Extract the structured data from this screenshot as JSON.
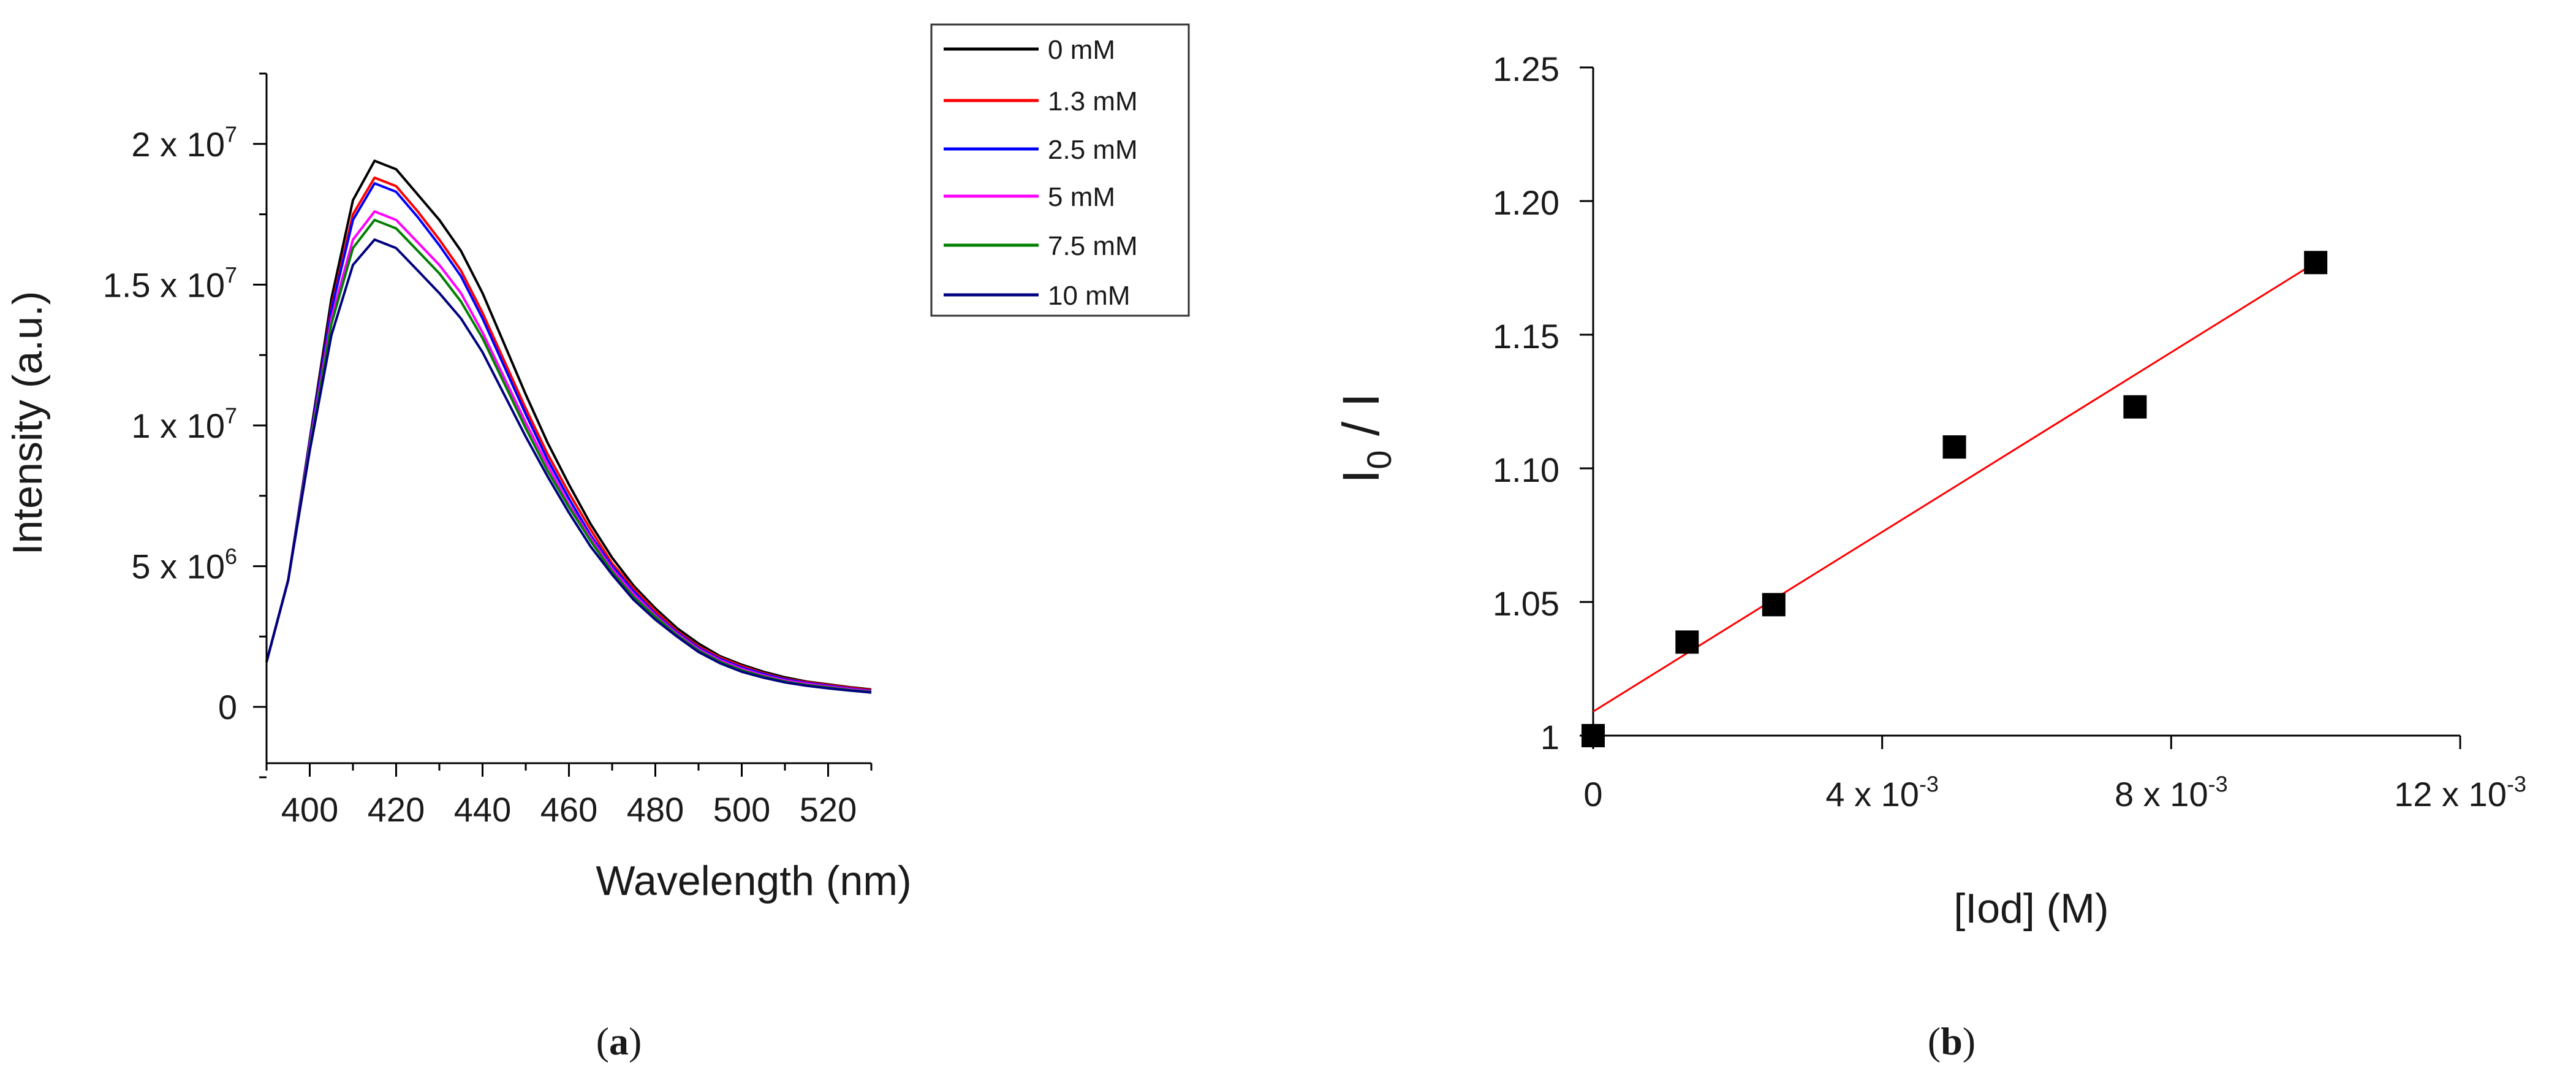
{
  "chart_data": [
    {
      "type": "line",
      "panel": "a",
      "xlabel": "Wavelength (nm)",
      "ylabel": "Intensity (a.u.)",
      "xlim": [
        390,
        530
      ],
      "ylim": [
        -2000000.0,
        22500000.0
      ],
      "xticks": [
        {
          "value": 400,
          "label": "400"
        },
        {
          "value": 420,
          "label": "420"
        },
        {
          "value": 440,
          "label": "440"
        },
        {
          "value": 460,
          "label": "460"
        },
        {
          "value": 480,
          "label": "480"
        },
        {
          "value": 500,
          "label": "500"
        },
        {
          "value": 520,
          "label": "520"
        }
      ],
      "yticks": [
        {
          "value": 0,
          "mantissa": "0",
          "exponent": ""
        },
        {
          "value": 5000000,
          "mantissa": "5 x 10",
          "exponent": "6"
        },
        {
          "value": 10000000,
          "mantissa": "1 x 10",
          "exponent": "7"
        },
        {
          "value": 15000000,
          "mantissa": "1.5 x 10",
          "exponent": "7"
        },
        {
          "value": 20000000,
          "mantissa": "2 x 10",
          "exponent": "7"
        }
      ],
      "x": [
        390,
        395,
        400,
        405,
        410,
        415,
        420,
        425,
        430,
        435,
        440,
        445,
        450,
        455,
        460,
        465,
        470,
        475,
        480,
        485,
        490,
        495,
        500,
        505,
        510,
        515,
        520,
        525,
        530
      ],
      "series": [
        {
          "name": "0 mM",
          "color": "#000000",
          "values": [
            0.16,
            0.45,
            0.95,
            1.45,
            1.8,
            1.94,
            1.91,
            1.82,
            1.73,
            1.62,
            1.47,
            1.29,
            1.11,
            0.94,
            0.79,
            0.65,
            0.53,
            0.43,
            0.35,
            0.28,
            0.225,
            0.18,
            0.15,
            0.125,
            0.105,
            0.09,
            0.08,
            0.07,
            0.062
          ]
        },
        {
          "name": "1.3 mM",
          "color": "#ff0000",
          "values": [
            0.16,
            0.45,
            0.94,
            1.42,
            1.75,
            1.88,
            1.85,
            1.76,
            1.66,
            1.55,
            1.4,
            1.23,
            1.06,
            0.9,
            0.76,
            0.63,
            0.51,
            0.42,
            0.34,
            0.27,
            0.215,
            0.175,
            0.145,
            0.12,
            0.1,
            0.088,
            0.078,
            0.068,
            0.06
          ]
        },
        {
          "name": "2.5 mM",
          "color": "#0000ff",
          "values": [
            0.16,
            0.45,
            0.94,
            1.41,
            1.73,
            1.86,
            1.83,
            1.74,
            1.64,
            1.53,
            1.38,
            1.21,
            1.04,
            0.88,
            0.74,
            0.61,
            0.5,
            0.41,
            0.33,
            0.265,
            0.21,
            0.17,
            0.14,
            0.117,
            0.098,
            0.085,
            0.075,
            0.065,
            0.057
          ]
        },
        {
          "name": "5 mM",
          "color": "#ff00ff",
          "values": [
            0.16,
            0.45,
            0.93,
            1.38,
            1.66,
            1.76,
            1.73,
            1.65,
            1.57,
            1.47,
            1.33,
            1.17,
            1.01,
            0.86,
            0.72,
            0.6,
            0.49,
            0.4,
            0.325,
            0.26,
            0.205,
            0.165,
            0.135,
            0.112,
            0.094,
            0.082,
            0.072,
            0.063,
            0.055
          ]
        },
        {
          "name": "7.5 mM",
          "color": "#008000",
          "values": [
            0.16,
            0.45,
            0.92,
            1.36,
            1.63,
            1.73,
            1.7,
            1.62,
            1.54,
            1.44,
            1.31,
            1.15,
            0.99,
            0.84,
            0.71,
            0.59,
            0.48,
            0.39,
            0.32,
            0.255,
            0.2,
            0.16,
            0.13,
            0.108,
            0.09,
            0.078,
            0.069,
            0.06,
            0.053
          ]
        },
        {
          "name": "10 mM",
          "color": "#000080",
          "values": [
            0.16,
            0.45,
            0.91,
            1.32,
            1.57,
            1.66,
            1.63,
            1.55,
            1.47,
            1.38,
            1.26,
            1.11,
            0.96,
            0.82,
            0.69,
            0.57,
            0.47,
            0.38,
            0.31,
            0.25,
            0.195,
            0.155,
            0.125,
            0.104,
            0.087,
            0.075,
            0.066,
            0.058,
            0.051
          ]
        }
      ],
      "series_unit_scale": 10000000,
      "legend_position": "top-right"
    },
    {
      "type": "scatter",
      "panel": "b",
      "xlabel": "[Iod] (M)",
      "ylabel_main": "I",
      "ylabel_sub": "0",
      "ylabel_tail": " / I",
      "xlim": [
        0,
        0.012
      ],
      "ylim": [
        1.0,
        1.25
      ],
      "xticks": [
        {
          "value": 0,
          "mantissa": "0",
          "exponent": ""
        },
        {
          "value": 0.004,
          "mantissa": "4 x 10",
          "exponent": "-3"
        },
        {
          "value": 0.008,
          "mantissa": "8 x 10",
          "exponent": "-3"
        },
        {
          "value": 0.012,
          "mantissa": "12 x 10",
          "exponent": "-3"
        }
      ],
      "yticks": [
        {
          "value": 1.0,
          "label": "1"
        },
        {
          "value": 1.05,
          "label": "1.05"
        },
        {
          "value": 1.1,
          "label": "1.10"
        },
        {
          "value": 1.15,
          "label": "1.15"
        },
        {
          "value": 1.2,
          "label": "1.20"
        },
        {
          "value": 1.25,
          "label": "1.25"
        }
      ],
      "points": [
        {
          "x": 0.0,
          "y": 1.0
        },
        {
          "x": 0.0013,
          "y": 1.035
        },
        {
          "x": 0.0025,
          "y": 1.049
        },
        {
          "x": 0.005,
          "y": 1.108
        },
        {
          "x": 0.0075,
          "y": 1.123
        },
        {
          "x": 0.01,
          "y": 1.177
        }
      ],
      "fit": {
        "intercept": 1.009,
        "slope": 16.8,
        "x_range": [
          0,
          0.01
        ],
        "color": "#ff0000"
      },
      "marker_color": "#000000"
    }
  ],
  "captions": {
    "a": {
      "open": "(",
      "letter": "a",
      "close": ")"
    },
    "b": {
      "open": "(",
      "letter": "b",
      "close": ")"
    }
  }
}
